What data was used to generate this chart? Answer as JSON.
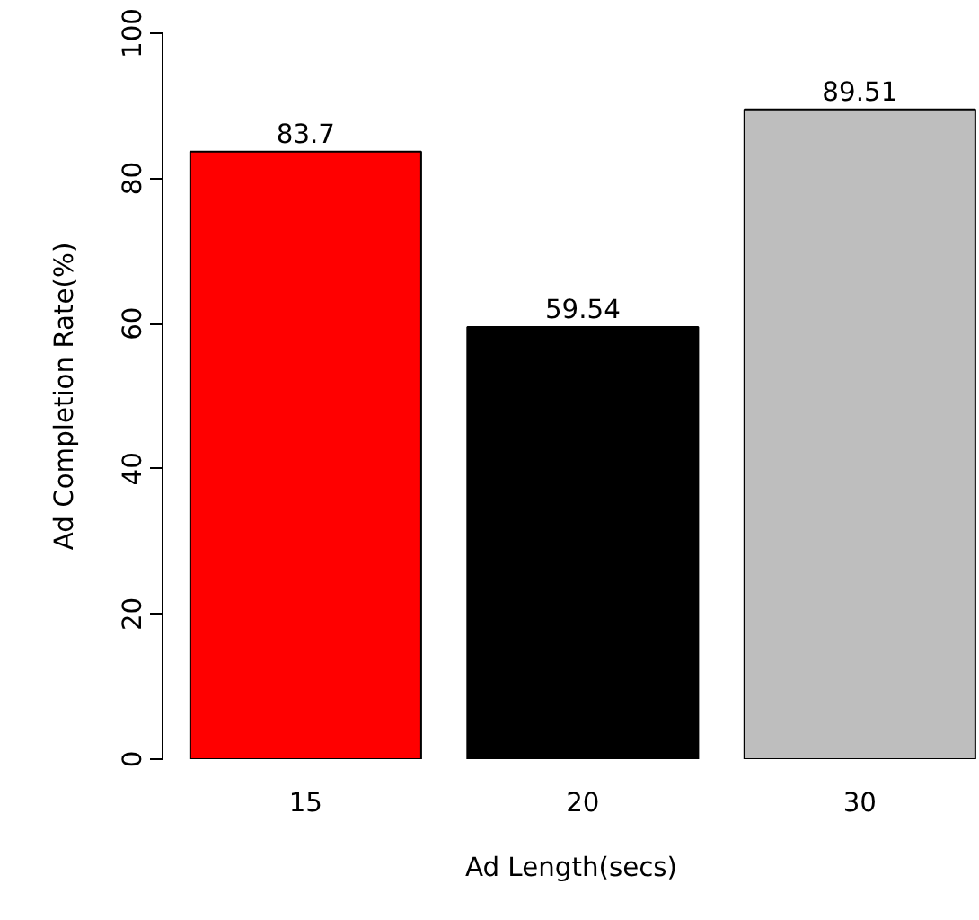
{
  "chart_data": {
    "type": "bar",
    "categories": [
      "15",
      "20",
      "30"
    ],
    "values": [
      83.7,
      59.54,
      89.51
    ],
    "colors": [
      "#ff0000",
      "#000000",
      "#bebebe"
    ],
    "xlabel": "Ad Length(secs)",
    "ylabel": "Ad Completion Rate(%)",
    "ylim": [
      0,
      100
    ],
    "yticks": [
      0,
      20,
      40,
      60,
      80,
      100
    ],
    "data_labels": true,
    "grid": false
  }
}
